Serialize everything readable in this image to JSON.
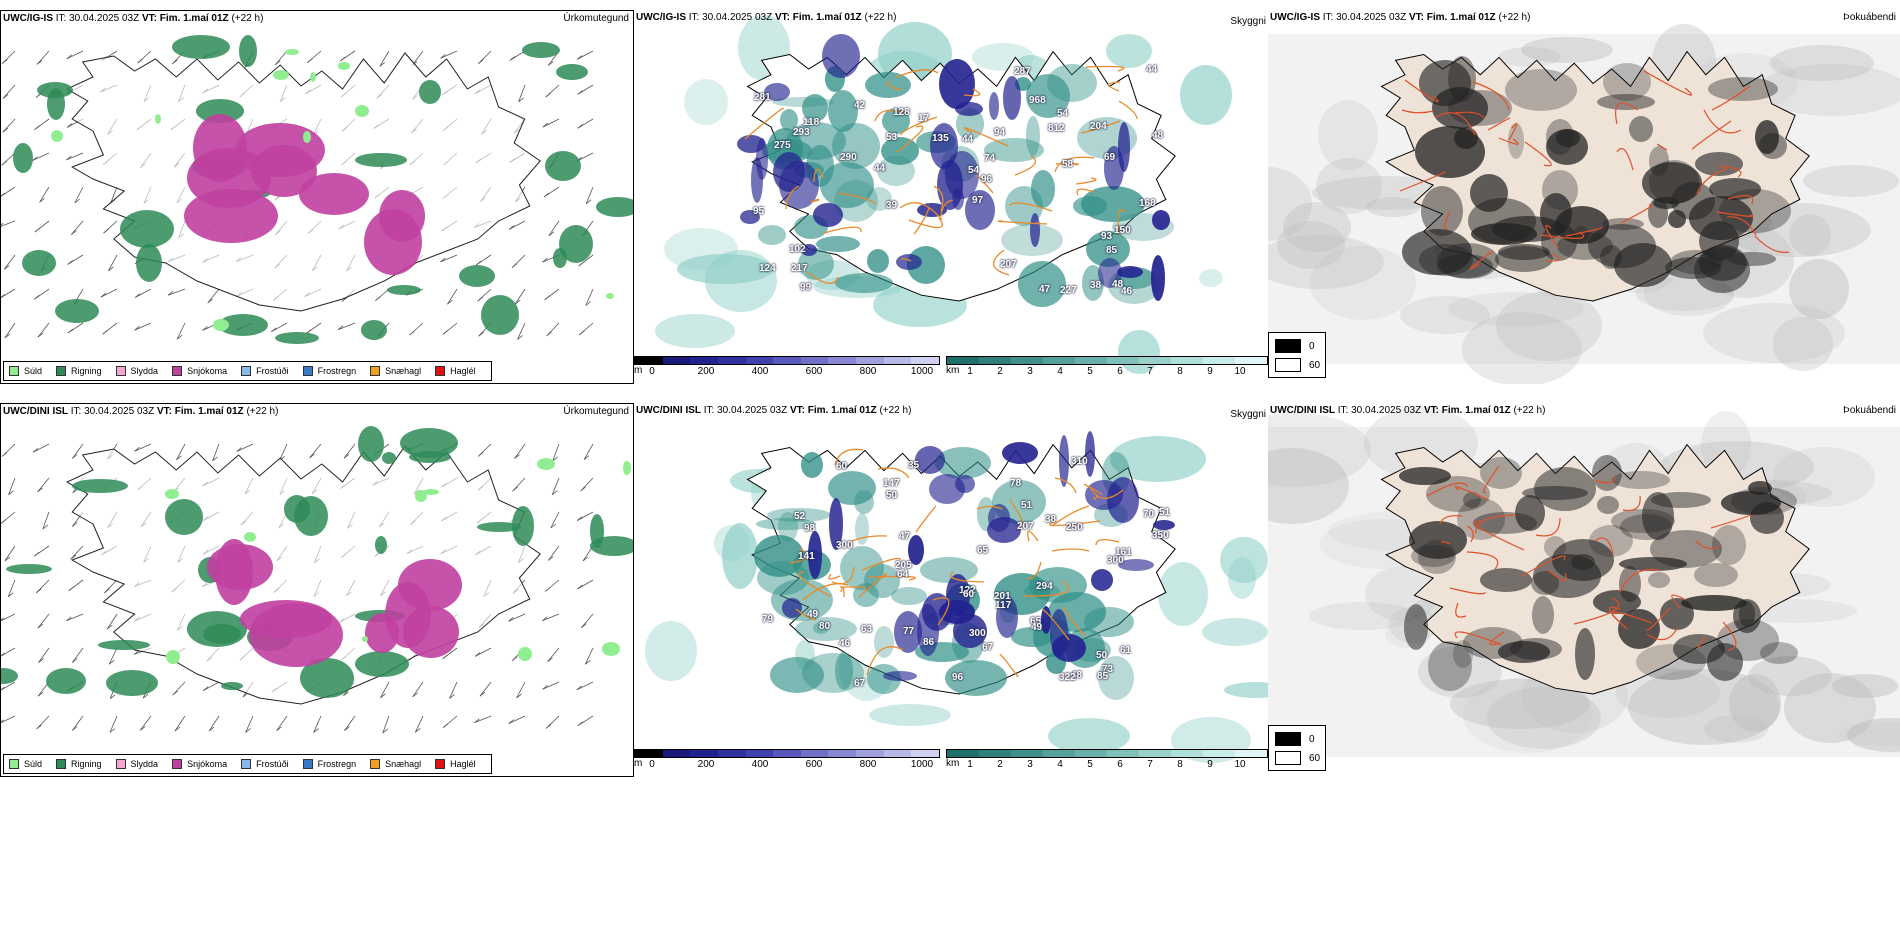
{
  "rows": [
    {
      "model": "UWC/IG-IS",
      "it_label": "IT:",
      "it_value": "30.04.2025 03Z",
      "vt_label": "VT:",
      "vt_value": "Fim. 1.maí 01Z",
      "lead": "(+22 h)"
    },
    {
      "model": "UWC/DINI ISL",
      "it_label": "IT:",
      "it_value": "30.04.2025 03Z",
      "vt_label": "VT:",
      "vt_value": "Fim. 1.maí 01Z",
      "lead": "(+22 h)"
    }
  ],
  "panel_titles": {
    "precip_type": "Úrkomutegund",
    "clouds": "Skyggni",
    "fog": "Þokuábendi"
  },
  "precip_legend": [
    {
      "label": "Súld",
      "color": "#90ee90"
    },
    {
      "label": "Rigning",
      "color": "#2e8b57"
    },
    {
      "label": "Slydda",
      "color": "#f4a6d0"
    },
    {
      "label": "Snjókoma",
      "color": "#c040a0"
    },
    {
      "label": "Frostúði",
      "color": "#87b8ee"
    },
    {
      "label": "Frostregn",
      "color": "#3a78c8"
    },
    {
      "label": "Snæhagl",
      "color": "#f0a020"
    },
    {
      "label": "Haglél",
      "color": "#e01010"
    }
  ],
  "cloud_base_scale": {
    "unit": "m",
    "ticks": [
      "0",
      "200",
      "400",
      "600",
      "800",
      "1000"
    ],
    "colors": [
      "#000000",
      "#1a1a7a",
      "#22228f",
      "#2f2fa0",
      "#4040b0",
      "#5858bc",
      "#7070c8",
      "#8888d2",
      "#a0a0dc",
      "#b8b8e6",
      "#d0d0f0"
    ]
  },
  "visibility_scale": {
    "unit": "km",
    "ticks": [
      "1",
      "2",
      "3",
      "4",
      "5",
      "6",
      "7",
      "8",
      "9",
      "10"
    ],
    "colors": [
      "#1f6f6a",
      "#2f7f7a",
      "#3f8f8a",
      "#55a09a",
      "#6ab0aa",
      "#80c0ba",
      "#98d0ca",
      "#b0e0da",
      "#c8ece8",
      "#e0f6f4"
    ]
  },
  "fog_legend": {
    "values": [
      "0",
      "60"
    ]
  },
  "cloud_base_labels": [
    [
      "44",
      "44",
      "47",
      "46",
      "95",
      "96",
      "207",
      "204",
      "44",
      "48",
      "54",
      "42",
      "39",
      "102",
      "227",
      "281",
      "290",
      "118",
      "128",
      "135",
      "812",
      "968",
      "217",
      "69",
      "53",
      "54",
      "48",
      "287",
      "275",
      "293",
      "168",
      "124",
      "150",
      "74",
      "58",
      "97",
      "93",
      "94",
      "17",
      "99",
      "85",
      "38"
    ],
    [
      "48",
      "50",
      "50",
      "61",
      "47",
      "73",
      "67",
      "60",
      "49",
      "52",
      "38",
      "300",
      "300",
      "300",
      "64",
      "80",
      "79",
      "70",
      "205",
      "122",
      "207",
      "322",
      "350",
      "310",
      "294",
      "250",
      "65",
      "60",
      "46",
      "49",
      "65",
      "51",
      "141",
      "98",
      "86",
      "147",
      "117",
      "85",
      "78",
      "63",
      "67",
      "77",
      "96",
      "51",
      "161",
      "201",
      "35"
    ]
  ]
}
